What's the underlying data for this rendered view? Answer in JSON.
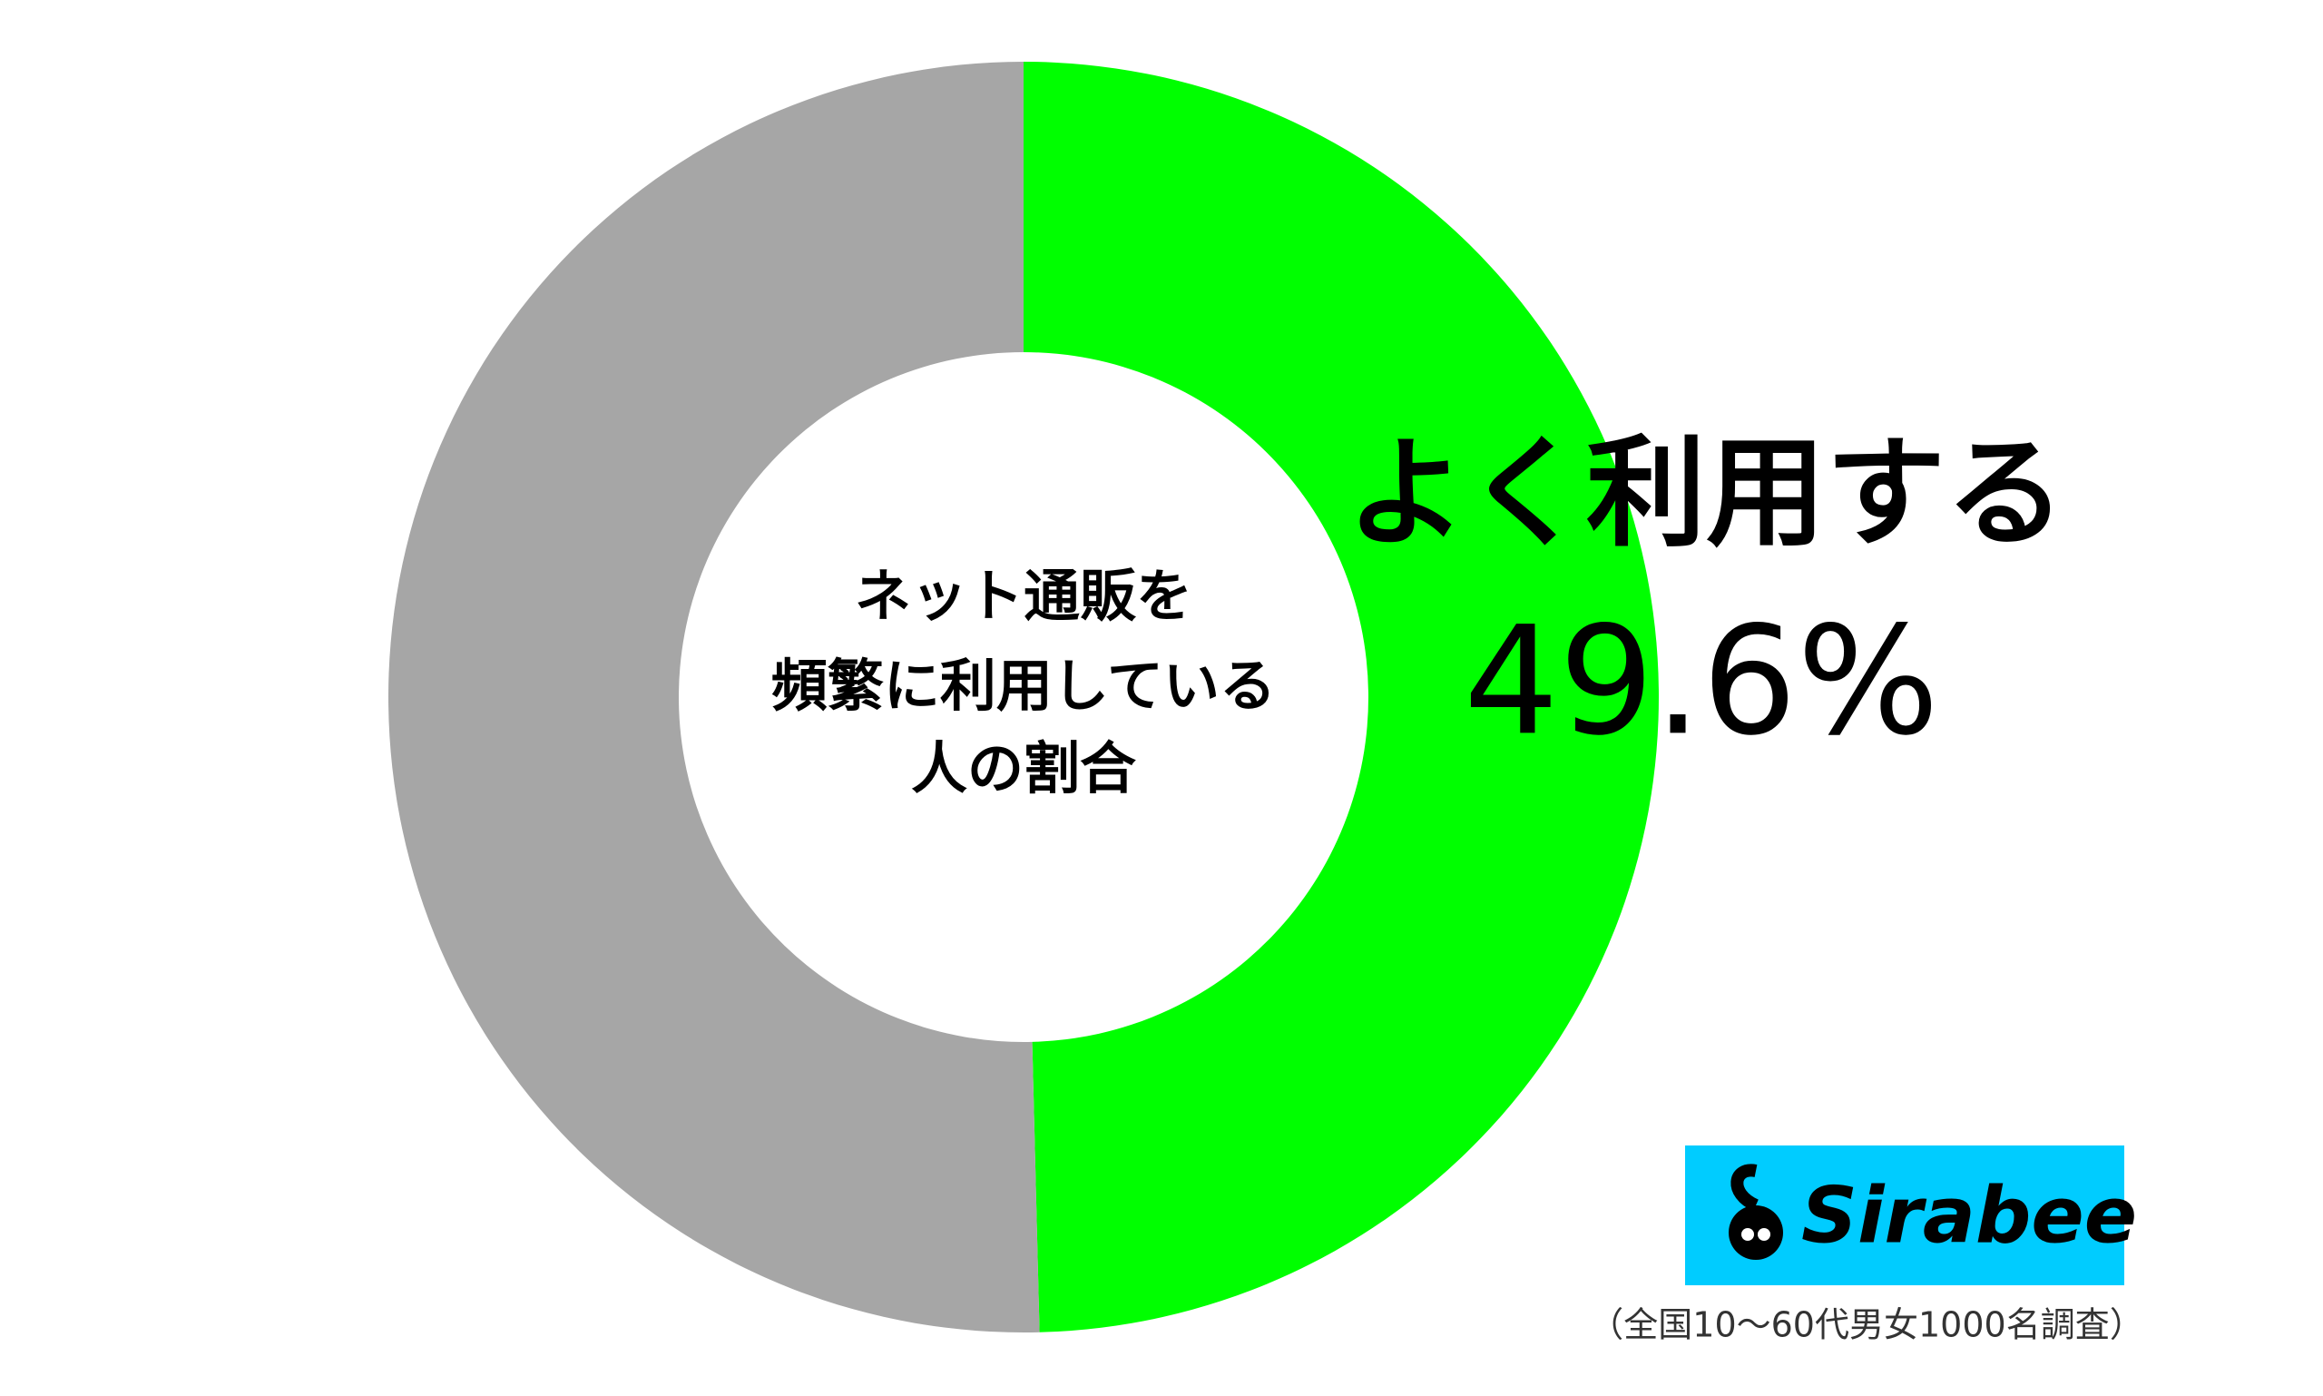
{
  "chart_data": {
    "type": "donut",
    "title_lines": [
      "ネット通販を",
      "頻繁に利用している",
      "人の割合"
    ],
    "categories": [
      "よく利用する",
      null
    ],
    "values": [
      49.6,
      50.4
    ],
    "value_labels": [
      "49.6%",
      null
    ],
    "colors": [
      "#00ff00",
      "#a6a6a6"
    ],
    "logo": "Sirabee",
    "note": "（全国10～60代男女1000名調査）"
  }
}
